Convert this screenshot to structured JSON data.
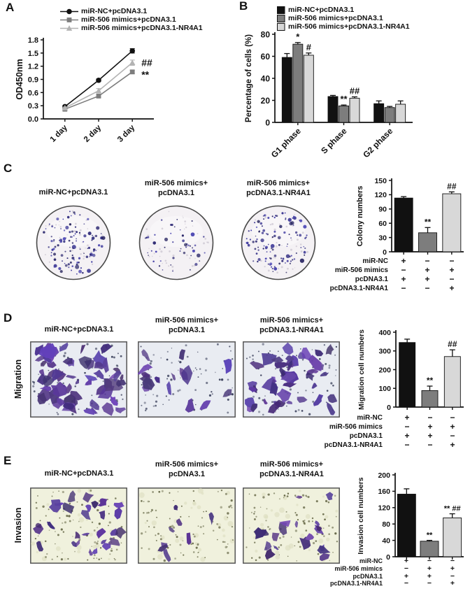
{
  "colors": {
    "black": "#111111",
    "gray": "#7d7d7d",
    "light_gray": "#d8d8d8",
    "line_light_gray": "#b3b3b3",
    "axis": "#111111",
    "migration_bg": "#e9ecf2",
    "invasion_bg": "#f0f1dd",
    "dish_bg": "#f4f1f4",
    "cell_purple": "#5b4aa0",
    "colony_dot": "#32327e"
  },
  "panels": {
    "a": {
      "letter": "A"
    },
    "b": {
      "letter": "B"
    },
    "c": {
      "letter": "C",
      "image_titles": [
        [
          "miR-NC+pcDNA3.1"
        ],
        [
          "miR-506 mimics+",
          "pcDNA3.1"
        ],
        [
          "miR-506 mimics+",
          "pcDNA3.1-NR4A1"
        ]
      ],
      "colony_counts": [
        110,
        48,
        118
      ]
    },
    "d": {
      "letter": "D",
      "row_label": "Migration",
      "image_titles": [
        [
          "miR-NC+pcDNA3.1"
        ],
        [
          "miR-506 mimics+",
          "pcDNA3.1"
        ],
        [
          "miR-506 mimics+",
          "pcDNA3.1-NR4A1"
        ]
      ],
      "cell_counts": [
        62,
        16,
        46
      ]
    },
    "e": {
      "letter": "E",
      "row_label": "Invasion",
      "image_titles": [
        [
          "miR-NC+pcDNA3.1"
        ],
        [
          "miR-506 mimics+",
          "pcDNA3.1"
        ],
        [
          "miR-506 mimics+",
          "pcDNA3.1-NR4A1"
        ]
      ],
      "cell_counts": [
        28,
        8,
        19
      ]
    }
  },
  "condition_matrix": {
    "row_labels": [
      "miR-NC",
      "miR-506 mimics",
      "pcDNA3.1",
      "pcDNA3.1-NR4A1"
    ],
    "values": [
      [
        "+",
        "−",
        "−"
      ],
      [
        "−",
        "+",
        "+"
      ],
      [
        "+",
        "+",
        "−"
      ],
      [
        "−",
        "−",
        "+"
      ]
    ]
  },
  "chart_data": [
    {
      "panel": "A",
      "type": "line",
      "title": "",
      "xlabel": "",
      "ylabel": "OD450nm",
      "categories": [
        "1 day",
        "2 day",
        "3 day"
      ],
      "ylim": [
        0,
        1.8
      ],
      "ytick": 0.3,
      "legend_position": "top",
      "series": [
        {
          "name": "miR-NC+pcDNA3.1",
          "color": "#111111",
          "marker": "circle",
          "values": [
            0.28,
            0.88,
            1.55
          ],
          "errors": [
            0.02,
            0.03,
            0.05
          ]
        },
        {
          "name": "miR-506 mimics+pcDNA3.1",
          "color": "#7d7d7d",
          "marker": "square",
          "values": [
            0.22,
            0.52,
            1.07
          ],
          "errors": [
            0.02,
            0.03,
            0.04
          ]
        },
        {
          "name": "miR-506 mimics+pcDNA3.1-NR4A1",
          "color": "#b3b3b3",
          "marker": "triangle",
          "values": [
            0.25,
            0.64,
            1.28
          ],
          "errors": [
            0.02,
            0.05,
            0.06
          ]
        }
      ],
      "annotations": [
        {
          "text": "##",
          "cat": 2,
          "value": 1.28,
          "dx": 13
        },
        {
          "text": "**",
          "cat": 2,
          "value": 1.01,
          "dx": 13
        }
      ]
    },
    {
      "panel": "B",
      "type": "bar",
      "title": "",
      "xlabel": "",
      "ylabel": "Percentage of cells (%)",
      "categories": [
        "G1 phase",
        "S phase",
        "G2 phase"
      ],
      "ylim": [
        0,
        80
      ],
      "ytick": 20,
      "legend_position": "top",
      "series": [
        {
          "name": "miR-NC+pcDNA3.1",
          "color": "#111111",
          "values": [
            59,
            23.5,
            17
          ],
          "errors": [
            3.5,
            1,
            2.5
          ],
          "sig": [
            "",
            "",
            ""
          ]
        },
        {
          "name": "miR-506 mimics+pcDNA3.1",
          "color": "#7d7d7d",
          "values": [
            71,
            15,
            13.5
          ],
          "errors": [
            1.5,
            0.8,
            1
          ],
          "sig": [
            "*",
            "**",
            ""
          ]
        },
        {
          "name": "miR-506 mimics+pcDNA3.1-NR4A1",
          "color": "#d8d8d8",
          "values": [
            61,
            22,
            16.5
          ],
          "errors": [
            2,
            1.2,
            3
          ],
          "sig": [
            "#",
            "##",
            ""
          ]
        }
      ]
    },
    {
      "panel": "C",
      "type": "bar",
      "title": "",
      "xlabel": "",
      "ylabel": "Colony numbers",
      "categories": [
        "miR-NC+pcDNA3.1",
        "miR-506 mimics+pcDNA3.1",
        "miR-506 mimics+pcDNA3.1-NR4A1"
      ],
      "hide_category_labels": true,
      "ylim": [
        0,
        150
      ],
      "ytick": 30,
      "series": [
        {
          "name": "Colony numbers",
          "colors": [
            "#111111",
            "#7d7d7d",
            "#d8d8d8"
          ],
          "values": [
            113,
            40,
            122
          ],
          "errors": [
            3,
            11,
            4
          ],
          "sig": [
            "",
            "**",
            "##"
          ]
        }
      ]
    },
    {
      "panel": "D",
      "type": "bar",
      "title": "",
      "xlabel": "",
      "ylabel": "Migration cell numbers",
      "categories": [
        "miR-NC+pcDNA3.1",
        "miR-506 mimics+pcDNA3.1",
        "miR-506 mimics+pcDNA3.1-NR4A1"
      ],
      "hide_category_labels": true,
      "ylim": [
        0,
        400
      ],
      "ytick": 100,
      "series": [
        {
          "name": "Migration cell numbers",
          "colors": [
            "#111111",
            "#7d7d7d",
            "#d8d8d8"
          ],
          "values": [
            345,
            88,
            270
          ],
          "errors": [
            18,
            24,
            36
          ],
          "sig": [
            "",
            "**",
            "##"
          ]
        }
      ]
    },
    {
      "panel": "E",
      "type": "bar",
      "title": "",
      "xlabel": "",
      "ylabel": "Invasion cell numbers",
      "categories": [
        "miR-NC+pcDNA3.1",
        "miR-506 mimics+pcDNA3.1",
        "miR-506 mimics+pcDNA3.1-NR4A1"
      ],
      "hide_category_labels": true,
      "ylim": [
        0,
        200
      ],
      "ytick": 40,
      "series": [
        {
          "name": "Invasion cell numbers",
          "colors": [
            "#111111",
            "#7d7d7d",
            "#d8d8d8"
          ],
          "values": [
            153,
            38,
            95
          ],
          "errors": [
            13,
            2,
            10
          ],
          "sig": [
            "",
            "**",
            "** ##"
          ]
        }
      ]
    }
  ]
}
